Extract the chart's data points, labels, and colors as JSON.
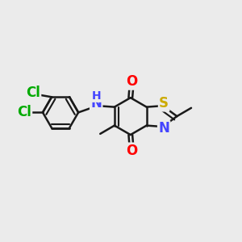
{
  "background_color": "#ebebeb",
  "bond_color": "#1a1a1a",
  "bond_width": 1.8,
  "atom_colors": {
    "O": "#ff0000",
    "S": "#ccaa00",
    "N": "#4444ff",
    "Cl": "#00aa00",
    "H": "#4444ff"
  },
  "font_size": 12,
  "font_size_nh": 11
}
